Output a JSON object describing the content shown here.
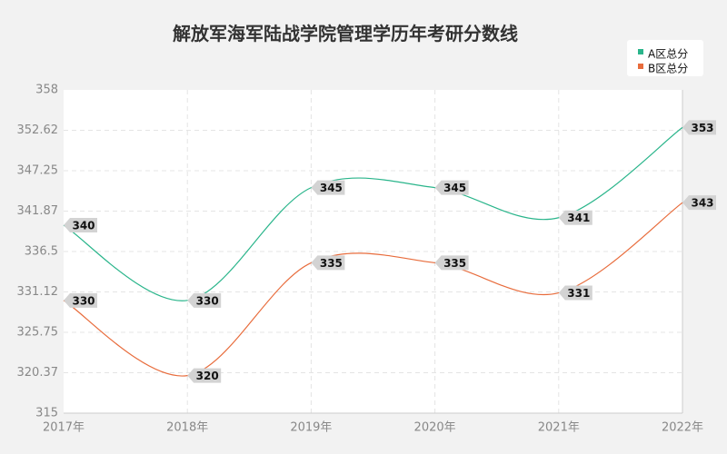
{
  "colors": {
    "background": "#f2f2f2",
    "plot_background": "#ffffff",
    "grid": "#e4e4e4",
    "axis": "#cccccc",
    "series_a": "#2ab58b",
    "series_b": "#e86c3c",
    "label_box": "#d3d3d3"
  },
  "chart_data": {
    "type": "line",
    "title": "解放军海军陆战学院管理学历年考研分数线",
    "x": [
      "2017年",
      "2018年",
      "2019年",
      "2020年",
      "2021年",
      "2022年"
    ],
    "ylim": [
      315,
      358
    ],
    "y_ticks": [
      "358",
      "352.62",
      "347.25",
      "341.87",
      "336.5",
      "331.12",
      "325.75",
      "320.37",
      "315"
    ],
    "smooth": true,
    "grid": true,
    "legend_position": "top-right",
    "series": [
      {
        "name": "A区总分",
        "values": [
          340,
          330,
          345,
          345,
          341,
          353
        ]
      },
      {
        "name": "B区总分",
        "values": [
          330,
          320,
          335,
          335,
          331,
          343
        ]
      }
    ]
  }
}
